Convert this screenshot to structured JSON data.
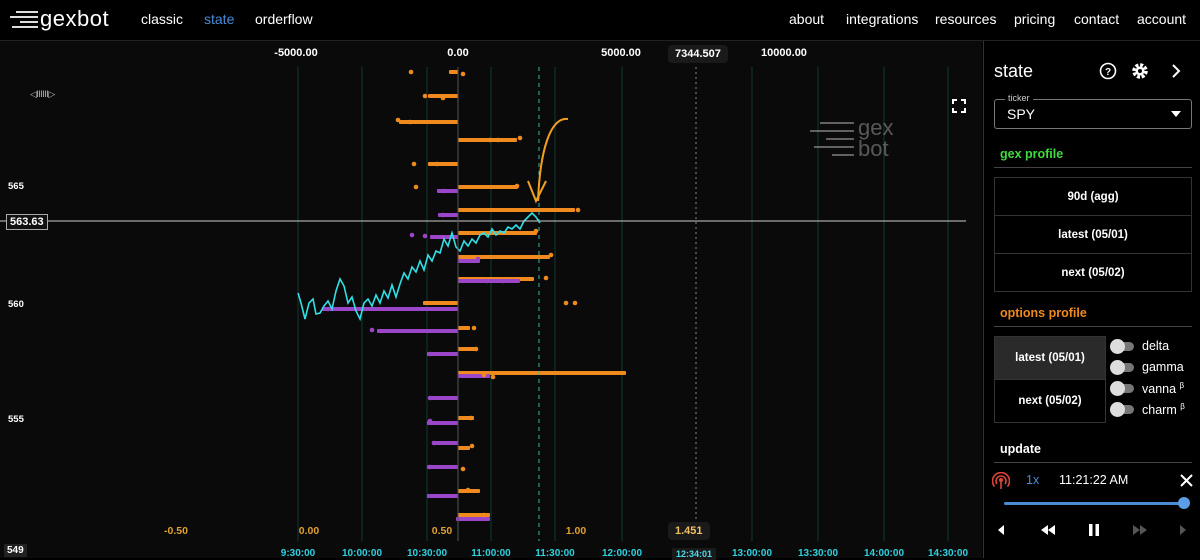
{
  "nav": {
    "logo_text": "gexbot",
    "left_links": [
      "classic",
      "state",
      "orderflow"
    ],
    "active": "state",
    "right_links": [
      "about",
      "integrations",
      "resources",
      "pricing",
      "contact",
      "account"
    ]
  },
  "chart": {
    "x_top_ticks": [
      "-5000.00",
      "0.00",
      "5000.00",
      "10000.00"
    ],
    "x_top_marker": "7344.507",
    "x_bottom_ticks": [
      "-0.50",
      "0.00",
      "0.50",
      "1.00"
    ],
    "x_bottom_marker": "1.451",
    "time_ticks": [
      "9:30:00",
      "10:00:00",
      "10:30:00",
      "11:00:00",
      "11:30:00",
      "12:00:00",
      "13:00:00",
      "13:30:00",
      "14:00:00",
      "14:30:00"
    ],
    "time_marker": "12:34:01",
    "y_ticks": [
      "565",
      "560",
      "555"
    ],
    "y_low_label": "549",
    "current_price": "563.63",
    "watermark_top": "gex",
    "watermark_bottom": "bot",
    "scrubber": "◁IIIIII▷",
    "colors": {
      "call": "#f08a1e",
      "put": "#9b45c8",
      "price": "#2fe0e6",
      "grid": "#0d3a2e"
    }
  },
  "panel": {
    "title": "state",
    "ticker_label": "ticker",
    "ticker_value": "SPY",
    "gex_profile_title": "gex profile",
    "gex_buttons": [
      "90d (agg)",
      "latest (05/01)",
      "next (05/02)"
    ],
    "options_profile_title": "options profile",
    "options_buttons": [
      "latest (05/01)",
      "next (05/02)"
    ],
    "toggles": [
      {
        "label": "delta",
        "beta": ""
      },
      {
        "label": "gamma",
        "beta": ""
      },
      {
        "label": "vanna",
        "beta": "β"
      },
      {
        "label": "charm",
        "beta": "β"
      }
    ],
    "update_title": "update",
    "speed": "1x",
    "time": "11:21:22 AM",
    "colors": {
      "gex_title": "#3fdc3f",
      "options_title": "#f08a1e",
      "accent": "#4b8bd6"
    }
  }
}
